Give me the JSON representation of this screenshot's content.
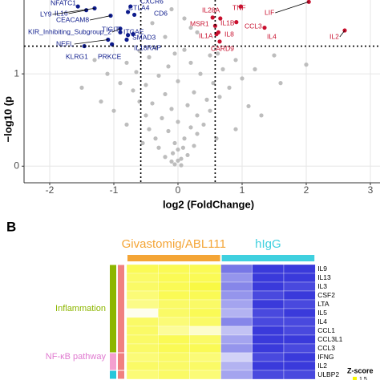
{
  "chart_data": [
    {
      "type": "scatter",
      "y_label": "−log10 (p",
      "x_label": "log2 (FoldChange)",
      "xlim": [
        -2.4,
        3.15
      ],
      "ylim": [
        -0.18,
        1.8
      ],
      "xticks": [
        -2,
        -1,
        0,
        1,
        2,
        3
      ],
      "yticks": [
        0,
        1
      ],
      "grid": true,
      "hlines": [
        1.3
      ],
      "vlines": [
        -0.58,
        0.58
      ],
      "series": [
        {
          "color": "#bdbdbd",
          "x": [
            -0.1,
            0.05,
            -0.2,
            0.15,
            0,
            -0.3,
            0.25,
            -0.05,
            0.1,
            -0.35,
            0.3,
            -0.15,
            0.2,
            -0.45,
            0.4,
            0,
            -0.25,
            0.3,
            -0.5,
            0.5,
            -0.1,
            0.15,
            -0.4,
            0.45,
            -0.6,
            0.65,
            -0.2,
            0.25,
            -0.7,
            0.8,
            -0.5,
            0.55,
            0,
            -0.9,
            1.0,
            -0.3,
            0.35,
            -0.65,
            0.7,
            -1.1,
            1.2,
            -0.15,
            0.2,
            -0.8,
            0.9,
            -0.45,
            0.5,
            -1.3,
            1.5,
            -0.05,
            -0.6,
            0.62,
            0.1,
            -0.35,
            -1.0,
            1.1,
            0.9,
            -0.8,
            0.6,
            -0.55,
            -0.05,
            0.05,
            0,
            -0.08,
            0.08,
            -1.5,
            1.6,
            2.0,
            -0.2,
            0.3,
            -0.4,
            0.1,
            -0.1,
            0.2,
            1.3,
            -1.2
          ],
          "values": [
            0.05,
            0.08,
            0.1,
            0.12,
            0.18,
            0.2,
            0.22,
            0.25,
            0.3,
            0.3,
            0.35,
            0.38,
            0.42,
            0.4,
            0.45,
            0.48,
            0.52,
            0.55,
            0.55,
            0.6,
            0.62,
            0.66,
            0.68,
            0.72,
            0.7,
            0.75,
            0.78,
            0.8,
            0.82,
            0.85,
            0.88,
            0.9,
            0.92,
            0.9,
            0.95,
            0.98,
            1.0,
            1.02,
            1.05,
            1.0,
            1.05,
            1.08,
            1.12,
            1.12,
            1.15,
            1.18,
            1.2,
            1.15,
            1.2,
            1.22,
            1.25,
            1.22,
            1.26,
            1.28,
            0.6,
            0.65,
            0.4,
            0.45,
            0.3,
            0.25,
            0.02,
            0.01,
            0.06,
            0.14,
            0.2,
            0.85,
            0.9,
            1.1,
            1.4,
            1.45,
            1.55,
            1.6,
            1.7,
            1.5,
            0.55,
            0.7
          ]
        },
        {
          "color": "#0d1b8c",
          "x": [
            -1.56,
            -1.43,
            -1.3,
            -1.05,
            -0.78,
            -0.74,
            -0.68,
            -0.9,
            -0.9,
            -0.7,
            -0.78,
            -1.09,
            -0.8,
            -1.46,
            -1.03
          ],
          "values": [
            1.73,
            1.69,
            1.71,
            1.63,
            1.67,
            1.73,
            1.64,
            1.49,
            1.45,
            1.43,
            1.42,
            1.37,
            1.37,
            1.3,
            1.32
          ],
          "labels": [
            "NFATC1",
            "IL16",
            "LY9",
            "CEACAM8",
            "CTLA4",
            "CXCR6",
            "CD6",
            "KIR_Inhibiting_Subgroup_2",
            "TIGIT",
            "ITGAE",
            "SMAD3",
            "NEFL",
            "IL18RAP",
            "KLRG1",
            "PRKCE"
          ]
        },
        {
          "color": "#c8102e",
          "x": [
            0.54,
            0.98,
            2.04,
            0.58,
            0.66,
            0.91,
            0.6,
            0.63,
            1.35,
            2.6,
            0.65
          ],
          "values": [
            1.61,
            1.73,
            1.78,
            1.52,
            1.6,
            1.56,
            1.43,
            1.45,
            1.5,
            1.47,
            1.35
          ],
          "labels": [
            "IL28A",
            "TNF",
            "LIF",
            "MSR1",
            "IL1B",
            "CCL3",
            "IL1A",
            "IL8",
            "IL4",
            "IL2",
            "CARD9"
          ]
        }
      ]
    },
    {
      "type": "heatmap",
      "panel_label": "B",
      "column_groups": [
        {
          "name": "Givastomig/ABL111",
          "color": "#f4a536",
          "span": 3
        },
        {
          "name": "hIgG",
          "color": "#3fd0df",
          "span": 3
        }
      ],
      "rows": [
        "IL9",
        "IL13",
        "IL3",
        "CSF2",
        "LTA",
        "IL5",
        "IL4",
        "CCL1",
        "CCL3L1",
        "CCL3",
        "IFNG",
        "IL2",
        "ULBP2"
      ],
      "row_groups": [
        {
          "name": "Inflammation",
          "color": "#8db600",
          "color2": "#f08080",
          "rows": 10
        },
        {
          "name": "NF-κB pathway",
          "color": "#f4a0d0",
          "color2": "#f08080",
          "rows": 2
        },
        {
          "name": null,
          "color": "#26c6da",
          "color2": "#f08080",
          "rows": 1
        }
      ],
      "values": [
        [
          1.0,
          1.0,
          1.0,
          -0.9,
          -1.3,
          -1.3
        ],
        [
          0.9,
          1.0,
          1.0,
          -0.7,
          -1.3,
          -1.3
        ],
        [
          0.9,
          1.0,
          1.1,
          -0.8,
          -1.3,
          -1.2
        ],
        [
          0.8,
          1.0,
          1.0,
          -0.7,
          -1.2,
          -1.3
        ],
        [
          0.7,
          0.9,
          0.9,
          -0.6,
          -1.3,
          -1.2
        ],
        [
          0.1,
          0.9,
          1.0,
          -0.5,
          -1.2,
          -1.3
        ],
        [
          0.9,
          0.8,
          0.9,
          -0.8,
          -1.2,
          -1.2
        ],
        [
          0.9,
          0.6,
          0.3,
          -0.4,
          -1.3,
          -1.2
        ],
        [
          0.9,
          1.0,
          0.9,
          -0.6,
          -1.3,
          -1.3
        ],
        [
          0.9,
          1.0,
          1.0,
          -0.7,
          -1.3,
          -1.2
        ],
        [
          0.8,
          0.9,
          0.8,
          -0.3,
          -1.2,
          -1.3
        ],
        [
          0.9,
          0.9,
          0.9,
          -0.5,
          -1.3,
          -1.3
        ],
        [
          0.8,
          0.9,
          0.8,
          -0.6,
          -1.2,
          -1.2
        ]
      ],
      "zlim": [
        -1.5,
        1.5
      ],
      "legend_title": "Z-score",
      "zticks": [
        1.5
      ]
    }
  ]
}
